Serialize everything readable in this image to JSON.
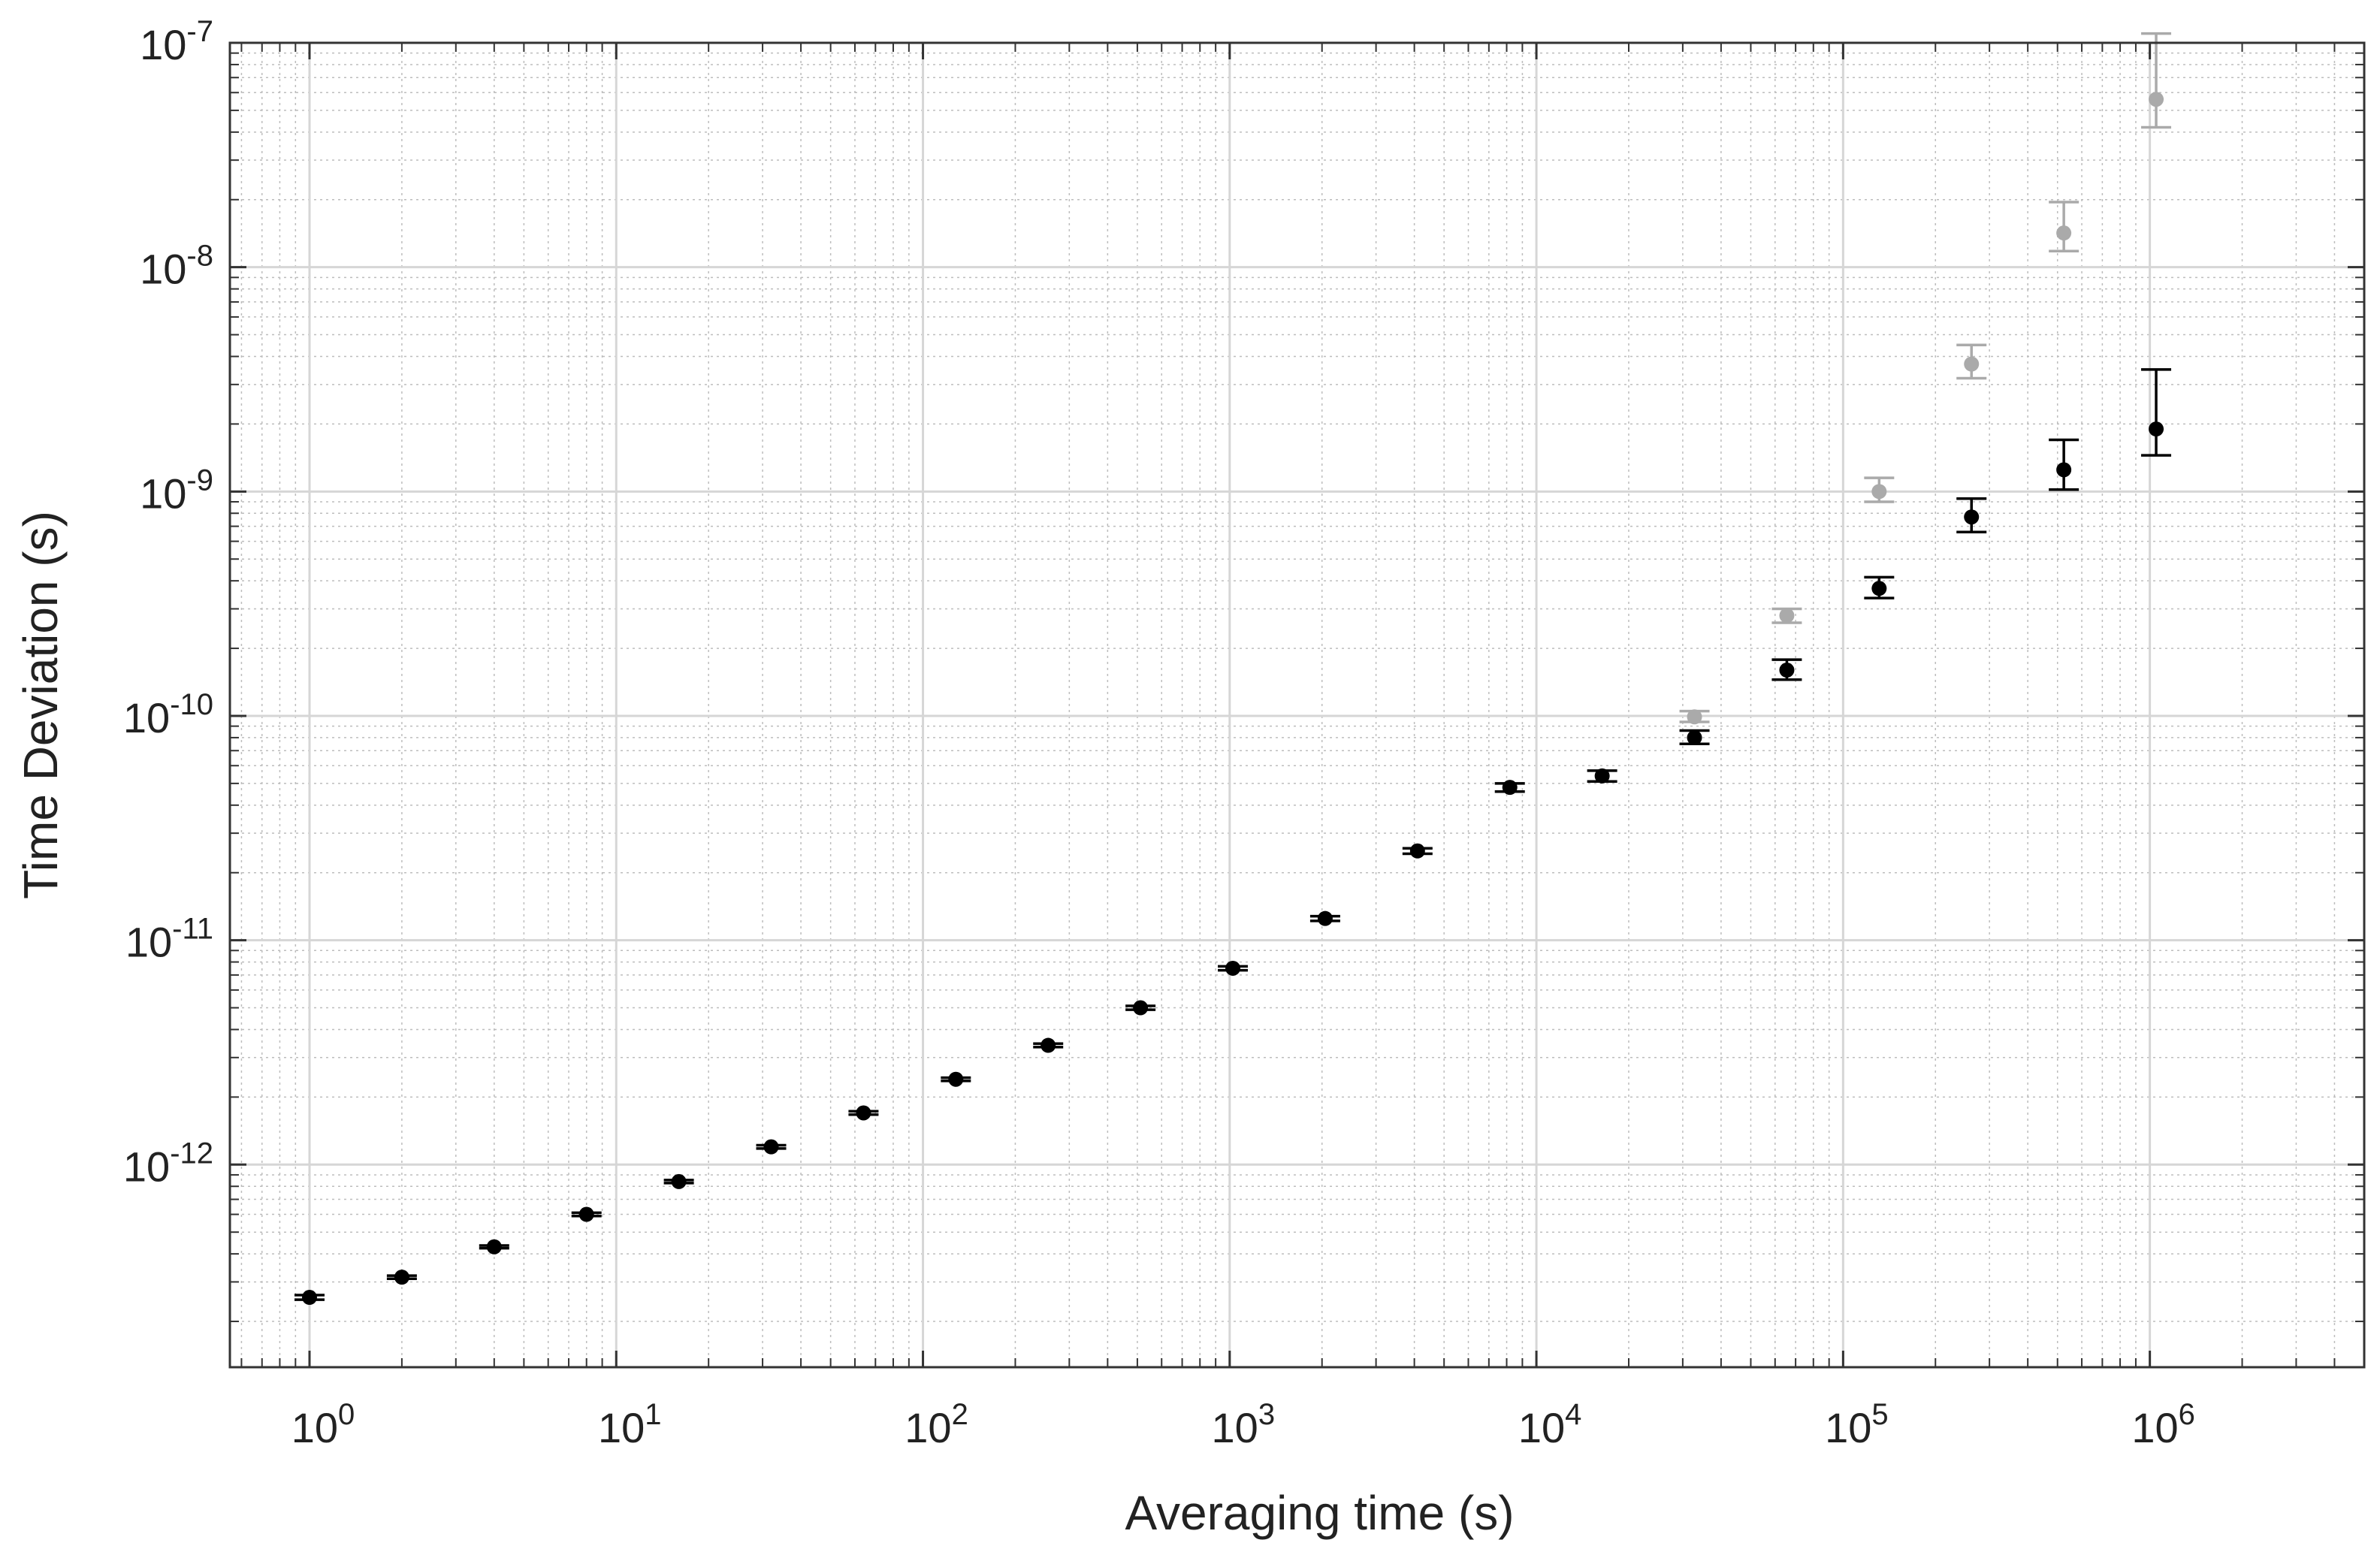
{
  "chart_data": {
    "type": "scatter",
    "title": "",
    "xlabel": "Averaging time (s)",
    "ylabel": "Time Deviation (s)",
    "xscale": "log",
    "yscale": "log",
    "xlim": [
      0.55,
      5000000
    ],
    "ylim": [
      1.25e-13,
      1e-07
    ],
    "grid": true,
    "legend": "none",
    "x_ticks": [
      {
        "value": 1,
        "base": "10",
        "exp": "0"
      },
      {
        "value": 10,
        "base": "10",
        "exp": "1"
      },
      {
        "value": 100,
        "base": "10",
        "exp": "2"
      },
      {
        "value": 1000,
        "base": "10",
        "exp": "3"
      },
      {
        "value": 10000,
        "base": "10",
        "exp": "4"
      },
      {
        "value": 100000,
        "base": "10",
        "exp": "5"
      },
      {
        "value": 1000000,
        "base": "10",
        "exp": "6"
      }
    ],
    "y_ticks": [
      {
        "value": 1e-12,
        "base": "10",
        "exp": "-12"
      },
      {
        "value": 1e-11,
        "base": "10",
        "exp": "-11"
      },
      {
        "value": 1e-10,
        "base": "10",
        "exp": "-10"
      },
      {
        "value": 1e-09,
        "base": "10",
        "exp": "-9"
      },
      {
        "value": 1e-08,
        "base": "10",
        "exp": "-8"
      },
      {
        "value": 1e-07,
        "base": "10",
        "exp": "-7"
      }
    ],
    "series": [
      {
        "color": "#aaaaaa",
        "points": [
          {
            "x": 32768,
            "y": 9.9e-11,
            "lo": 9.4e-11,
            "hi": 1.05e-10
          },
          {
            "x": 65536,
            "y": 2.8e-10,
            "lo": 2.6e-10,
            "hi": 3e-10
          },
          {
            "x": 131072,
            "y": 1e-09,
            "lo": 9e-10,
            "hi": 1.15e-09
          },
          {
            "x": 262144,
            "y": 3.7e-09,
            "lo": 3.2e-09,
            "hi": 4.5e-09
          },
          {
            "x": 524288,
            "y": 1.42e-08,
            "lo": 1.18e-08,
            "hi": 1.95e-08
          },
          {
            "x": 1048576,
            "y": 5.6e-08,
            "lo": 4.2e-08,
            "hi": 1.1e-07
          }
        ]
      },
      {
        "color": "#000000",
        "points": [
          {
            "x": 1,
            "y": 2.56e-13,
            "lo": 2.5e-13,
            "hi": 2.62e-13
          },
          {
            "x": 2,
            "y": 3.15e-13,
            "lo": 3.1e-13,
            "hi": 3.2e-13
          },
          {
            "x": 4,
            "y": 4.3e-13,
            "lo": 4.24e-13,
            "hi": 4.36e-13
          },
          {
            "x": 8,
            "y": 6e-13,
            "lo": 5.9e-13,
            "hi": 6.1e-13
          },
          {
            "x": 16,
            "y": 8.4e-13,
            "lo": 8.27e-13,
            "hi": 8.53e-13
          },
          {
            "x": 32,
            "y": 1.2e-12,
            "lo": 1.18e-12,
            "hi": 1.22e-12
          },
          {
            "x": 64,
            "y": 1.7e-12,
            "lo": 1.67e-12,
            "hi": 1.73e-12
          },
          {
            "x": 128,
            "y": 2.4e-12,
            "lo": 2.36e-12,
            "hi": 2.44e-12
          },
          {
            "x": 256,
            "y": 3.4e-12,
            "lo": 3.34e-12,
            "hi": 3.46e-12
          },
          {
            "x": 512,
            "y": 5e-12,
            "lo": 4.9e-12,
            "hi": 5.1e-12
          },
          {
            "x": 1024,
            "y": 7.5e-12,
            "lo": 7.35e-12,
            "hi": 7.65e-12
          },
          {
            "x": 2048,
            "y": 1.25e-11,
            "lo": 1.22e-11,
            "hi": 1.28e-11
          },
          {
            "x": 4096,
            "y": 2.5e-11,
            "lo": 2.43e-11,
            "hi": 2.57e-11
          },
          {
            "x": 8192,
            "y": 4.8e-11,
            "lo": 4.6e-11,
            "hi": 5e-11
          },
          {
            "x": 16384,
            "y": 5.4e-11,
            "lo": 5.1e-11,
            "hi": 5.7e-11
          },
          {
            "x": 32768,
            "y": 8e-11,
            "lo": 7.5e-11,
            "hi": 8.6e-11
          },
          {
            "x": 65536,
            "y": 1.6e-10,
            "lo": 1.45e-10,
            "hi": 1.78e-10
          },
          {
            "x": 131072,
            "y": 3.7e-10,
            "lo": 3.35e-10,
            "hi": 4.15e-10
          },
          {
            "x": 262144,
            "y": 7.7e-10,
            "lo": 6.6e-10,
            "hi": 9.3e-10
          },
          {
            "x": 524288,
            "y": 1.25e-09,
            "lo": 1.02e-09,
            "hi": 1.7e-09
          },
          {
            "x": 1048576,
            "y": 1.9e-09,
            "lo": 1.45e-09,
            "hi": 3.5e-09
          }
        ]
      }
    ]
  }
}
